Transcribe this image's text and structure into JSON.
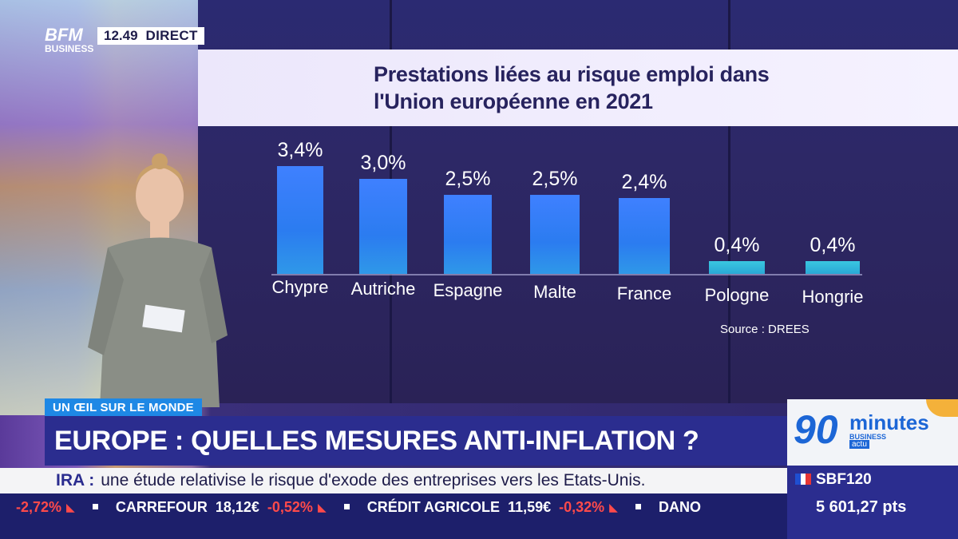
{
  "overlay": {
    "channel_logo": "BFM",
    "channel_logo_sub": "BUSINESS",
    "time": "12.49",
    "live_label": "DIRECT",
    "segment_tag": "UN ŒIL SUR LE MONDE",
    "headline": "EUROPE : QUELLES MESURES ANTI-INFLATION ?",
    "news_prefix": "IRA :",
    "news_text": "une étude relativise le risque d'exode des entreprises vers les Etats-Unis.",
    "ticker": [
      {
        "name": "",
        "value": "",
        "change": "-2,72%"
      },
      {
        "name": "CARREFOUR",
        "value": "18,12€",
        "change": "-0,52%"
      },
      {
        "name": "CRÉDIT AGRICOLE",
        "value": "11,59€",
        "change": "-0,32%"
      },
      {
        "name": "DANO",
        "value": "",
        "change": ""
      }
    ],
    "brand": {
      "number": "90",
      "word": "minutes",
      "sub": "BUSINESS",
      "badge": "actu"
    },
    "index": {
      "name": "SBF120",
      "value": "5 601,27 pts"
    }
  },
  "colors": {
    "accent": "#2b2d8f",
    "bar": "#2b7cf0",
    "negative": "#ff4a4a",
    "brand": "#1c66d6"
  },
  "chart_data": {
    "type": "bar",
    "title": "Prestations liées au risque emploi dans l'Union européenne en 2021",
    "categories": [
      "Chypre",
      "Autriche",
      "Espagne",
      "Malte",
      "France",
      "Pologne",
      "Hongrie"
    ],
    "values": [
      3.4,
      3.0,
      2.5,
      2.5,
      2.4,
      0.4,
      0.4
    ],
    "value_labels": [
      "3,4%",
      "3,0%",
      "2,5%",
      "2,5%",
      "2,4%",
      "0,4%",
      "0,4%"
    ],
    "source": "Source : DREES",
    "xlabel": "",
    "ylabel": "",
    "grid": false
  }
}
